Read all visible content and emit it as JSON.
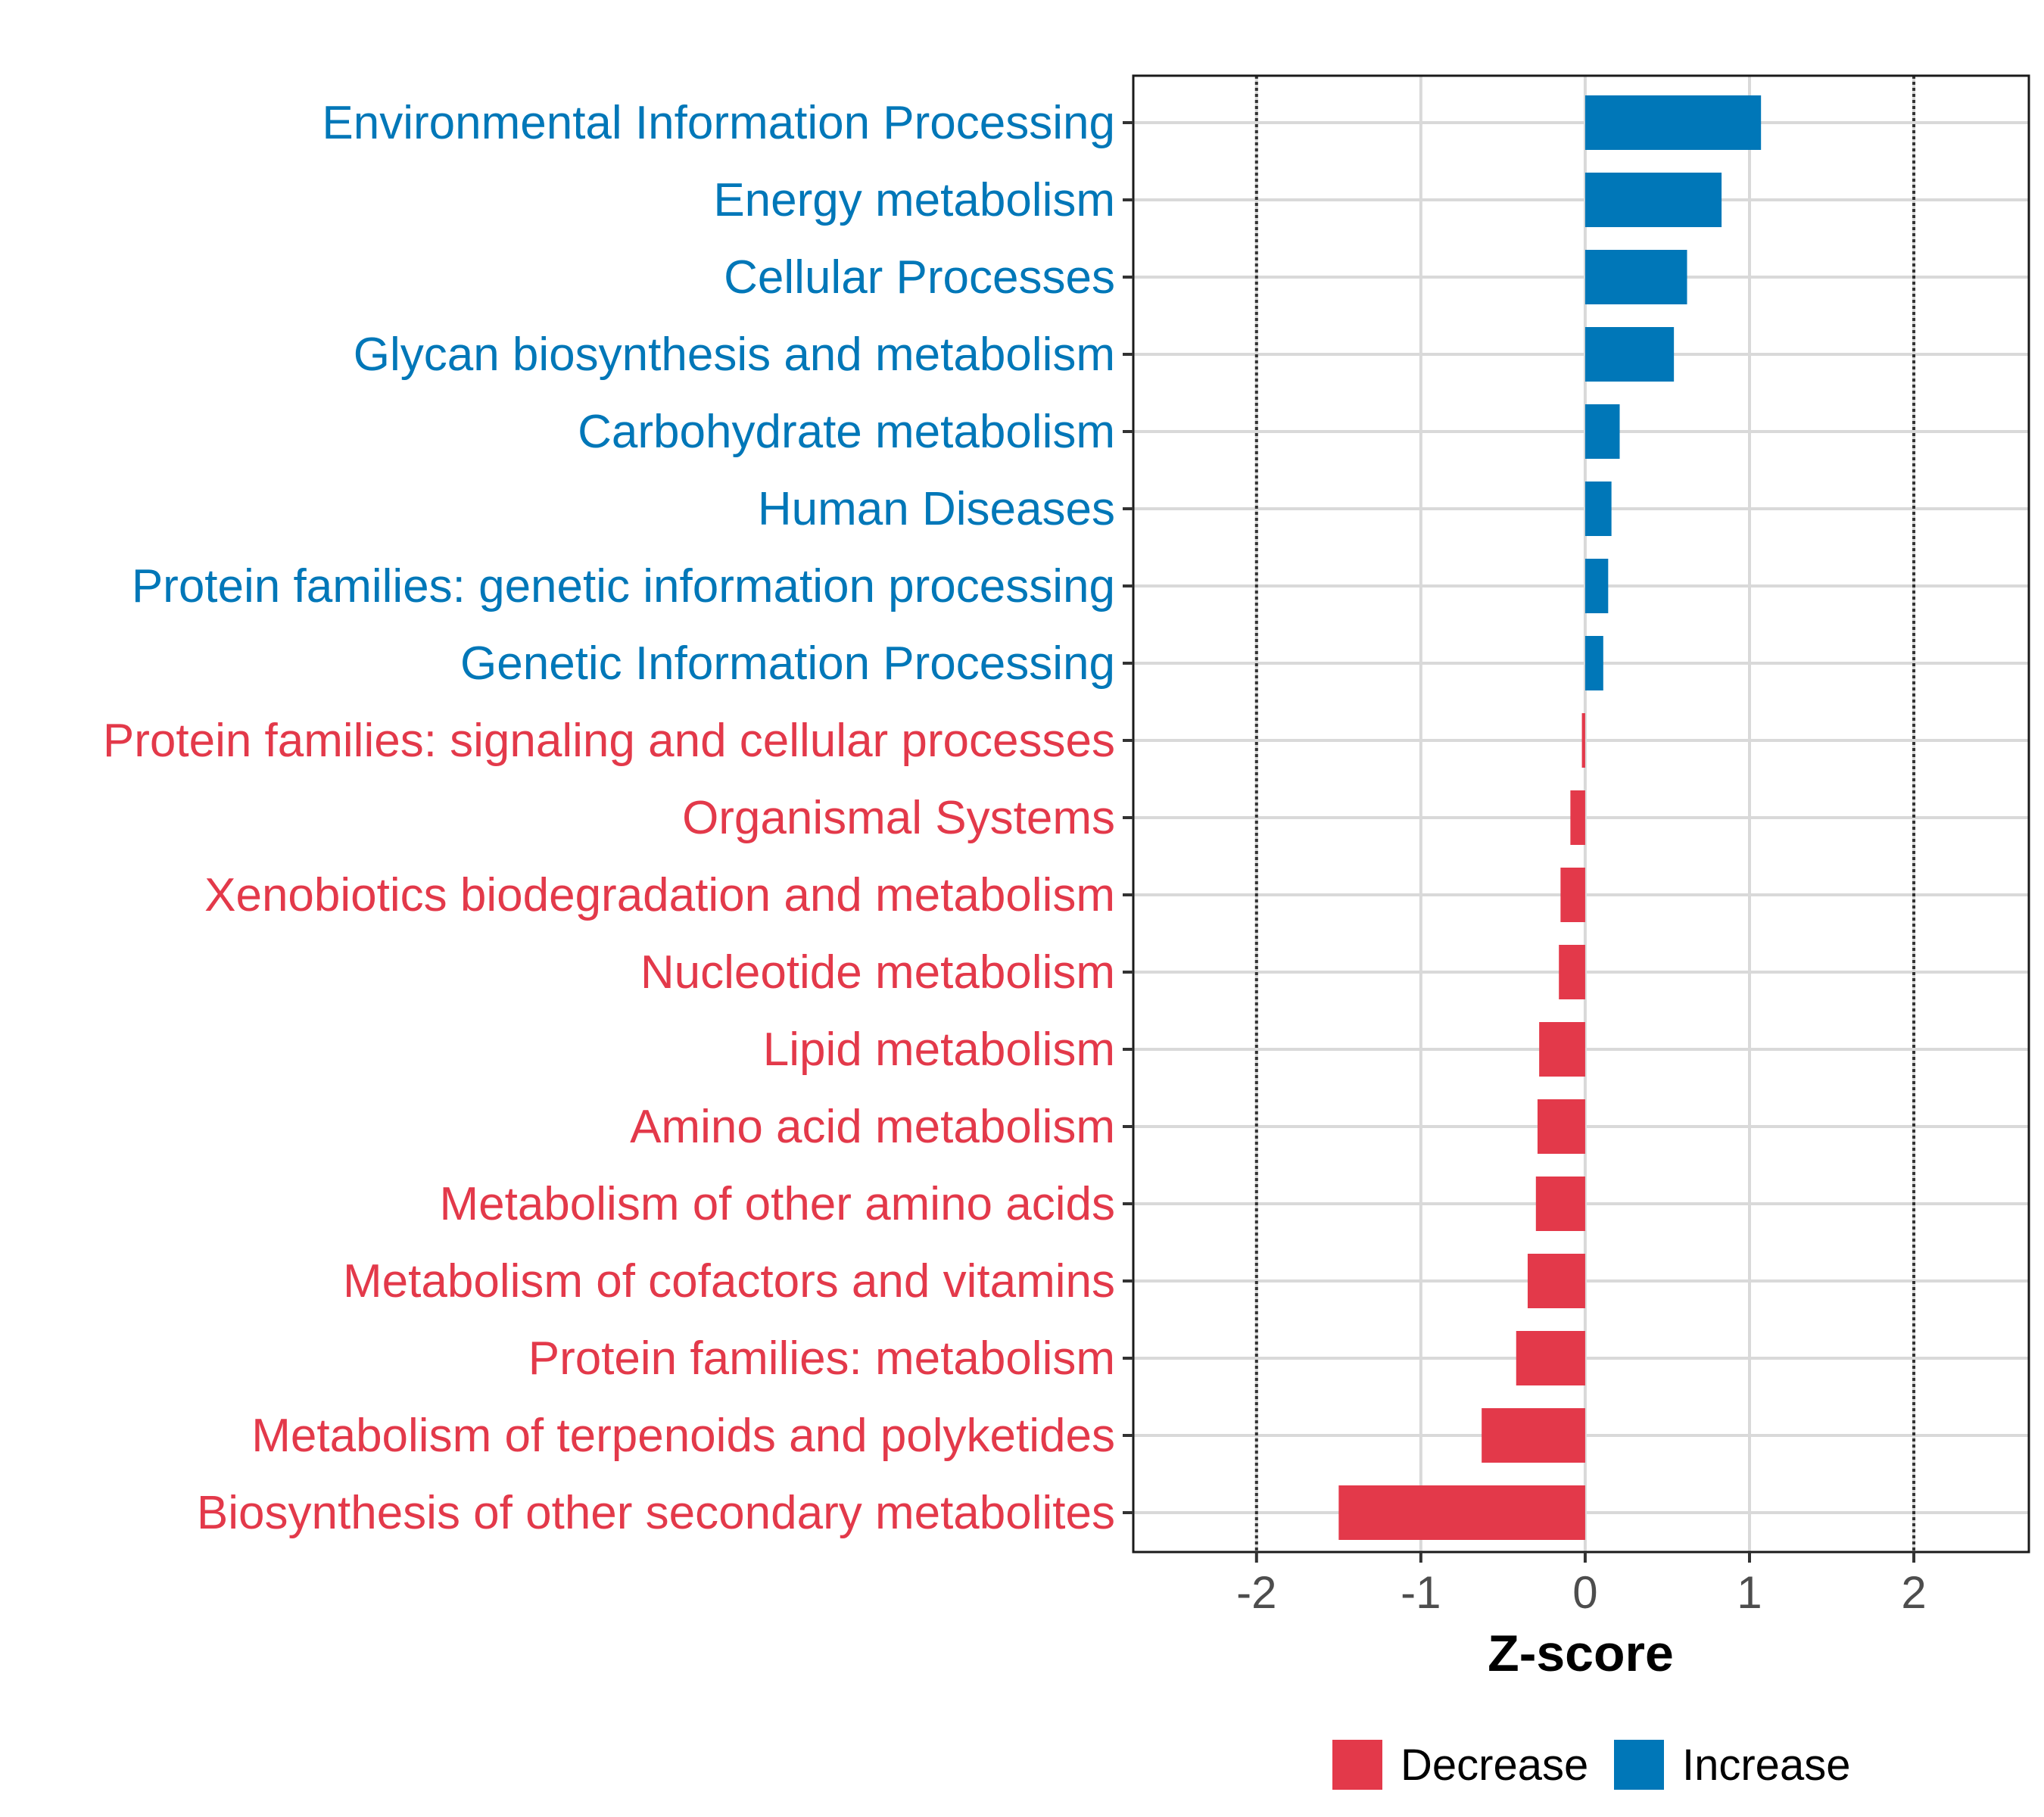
{
  "chart_data": {
    "type": "bar",
    "orientation": "horizontal",
    "xlabel": "Z-score",
    "xlim": [
      -2.75,
      2.7
    ],
    "xticks": [
      -2,
      -1,
      0,
      1,
      2
    ],
    "xtick_labels": [
      "-2",
      "-1",
      "0",
      "1",
      "2"
    ],
    "reference_lines": [
      -2,
      2
    ],
    "grid": true,
    "legend_position": "bottom",
    "colors": {
      "Decrease": "#e3394a",
      "Increase": "#0077b8"
    },
    "legend": [
      {
        "name": "Decrease",
        "color": "#e3394a"
      },
      {
        "name": "Increase",
        "color": "#0077b8"
      }
    ],
    "categories": [
      "Environmental Information Processing",
      "Energy metabolism",
      "Cellular Processes",
      "Glycan biosynthesis and metabolism",
      "Carbohydrate metabolism",
      "Human Diseases",
      "Protein families: genetic information processing",
      "Genetic Information Processing",
      "Protein families: signaling and cellular processes",
      "Organismal Systems",
      "Xenobiotics biodegradation and metabolism",
      "Nucleotide metabolism",
      "Lipid metabolism",
      "Amino acid metabolism",
      "Metabolism of other amino acids",
      "Metabolism of cofactors and vitamins",
      "Protein families: metabolism",
      "Metabolism of terpenoids and polyketides",
      "Biosynthesis of other secondary metabolites"
    ],
    "values": [
      1.07,
      0.83,
      0.62,
      0.54,
      0.21,
      0.16,
      0.14,
      0.11,
      -0.02,
      -0.09,
      -0.15,
      -0.16,
      -0.28,
      -0.29,
      -0.3,
      -0.35,
      -0.42,
      -0.63,
      -1.5
    ],
    "groups": [
      "Increase",
      "Increase",
      "Increase",
      "Increase",
      "Increase",
      "Increase",
      "Increase",
      "Increase",
      "Decrease",
      "Decrease",
      "Decrease",
      "Decrease",
      "Decrease",
      "Decrease",
      "Decrease",
      "Decrease",
      "Decrease",
      "Decrease",
      "Decrease"
    ]
  }
}
